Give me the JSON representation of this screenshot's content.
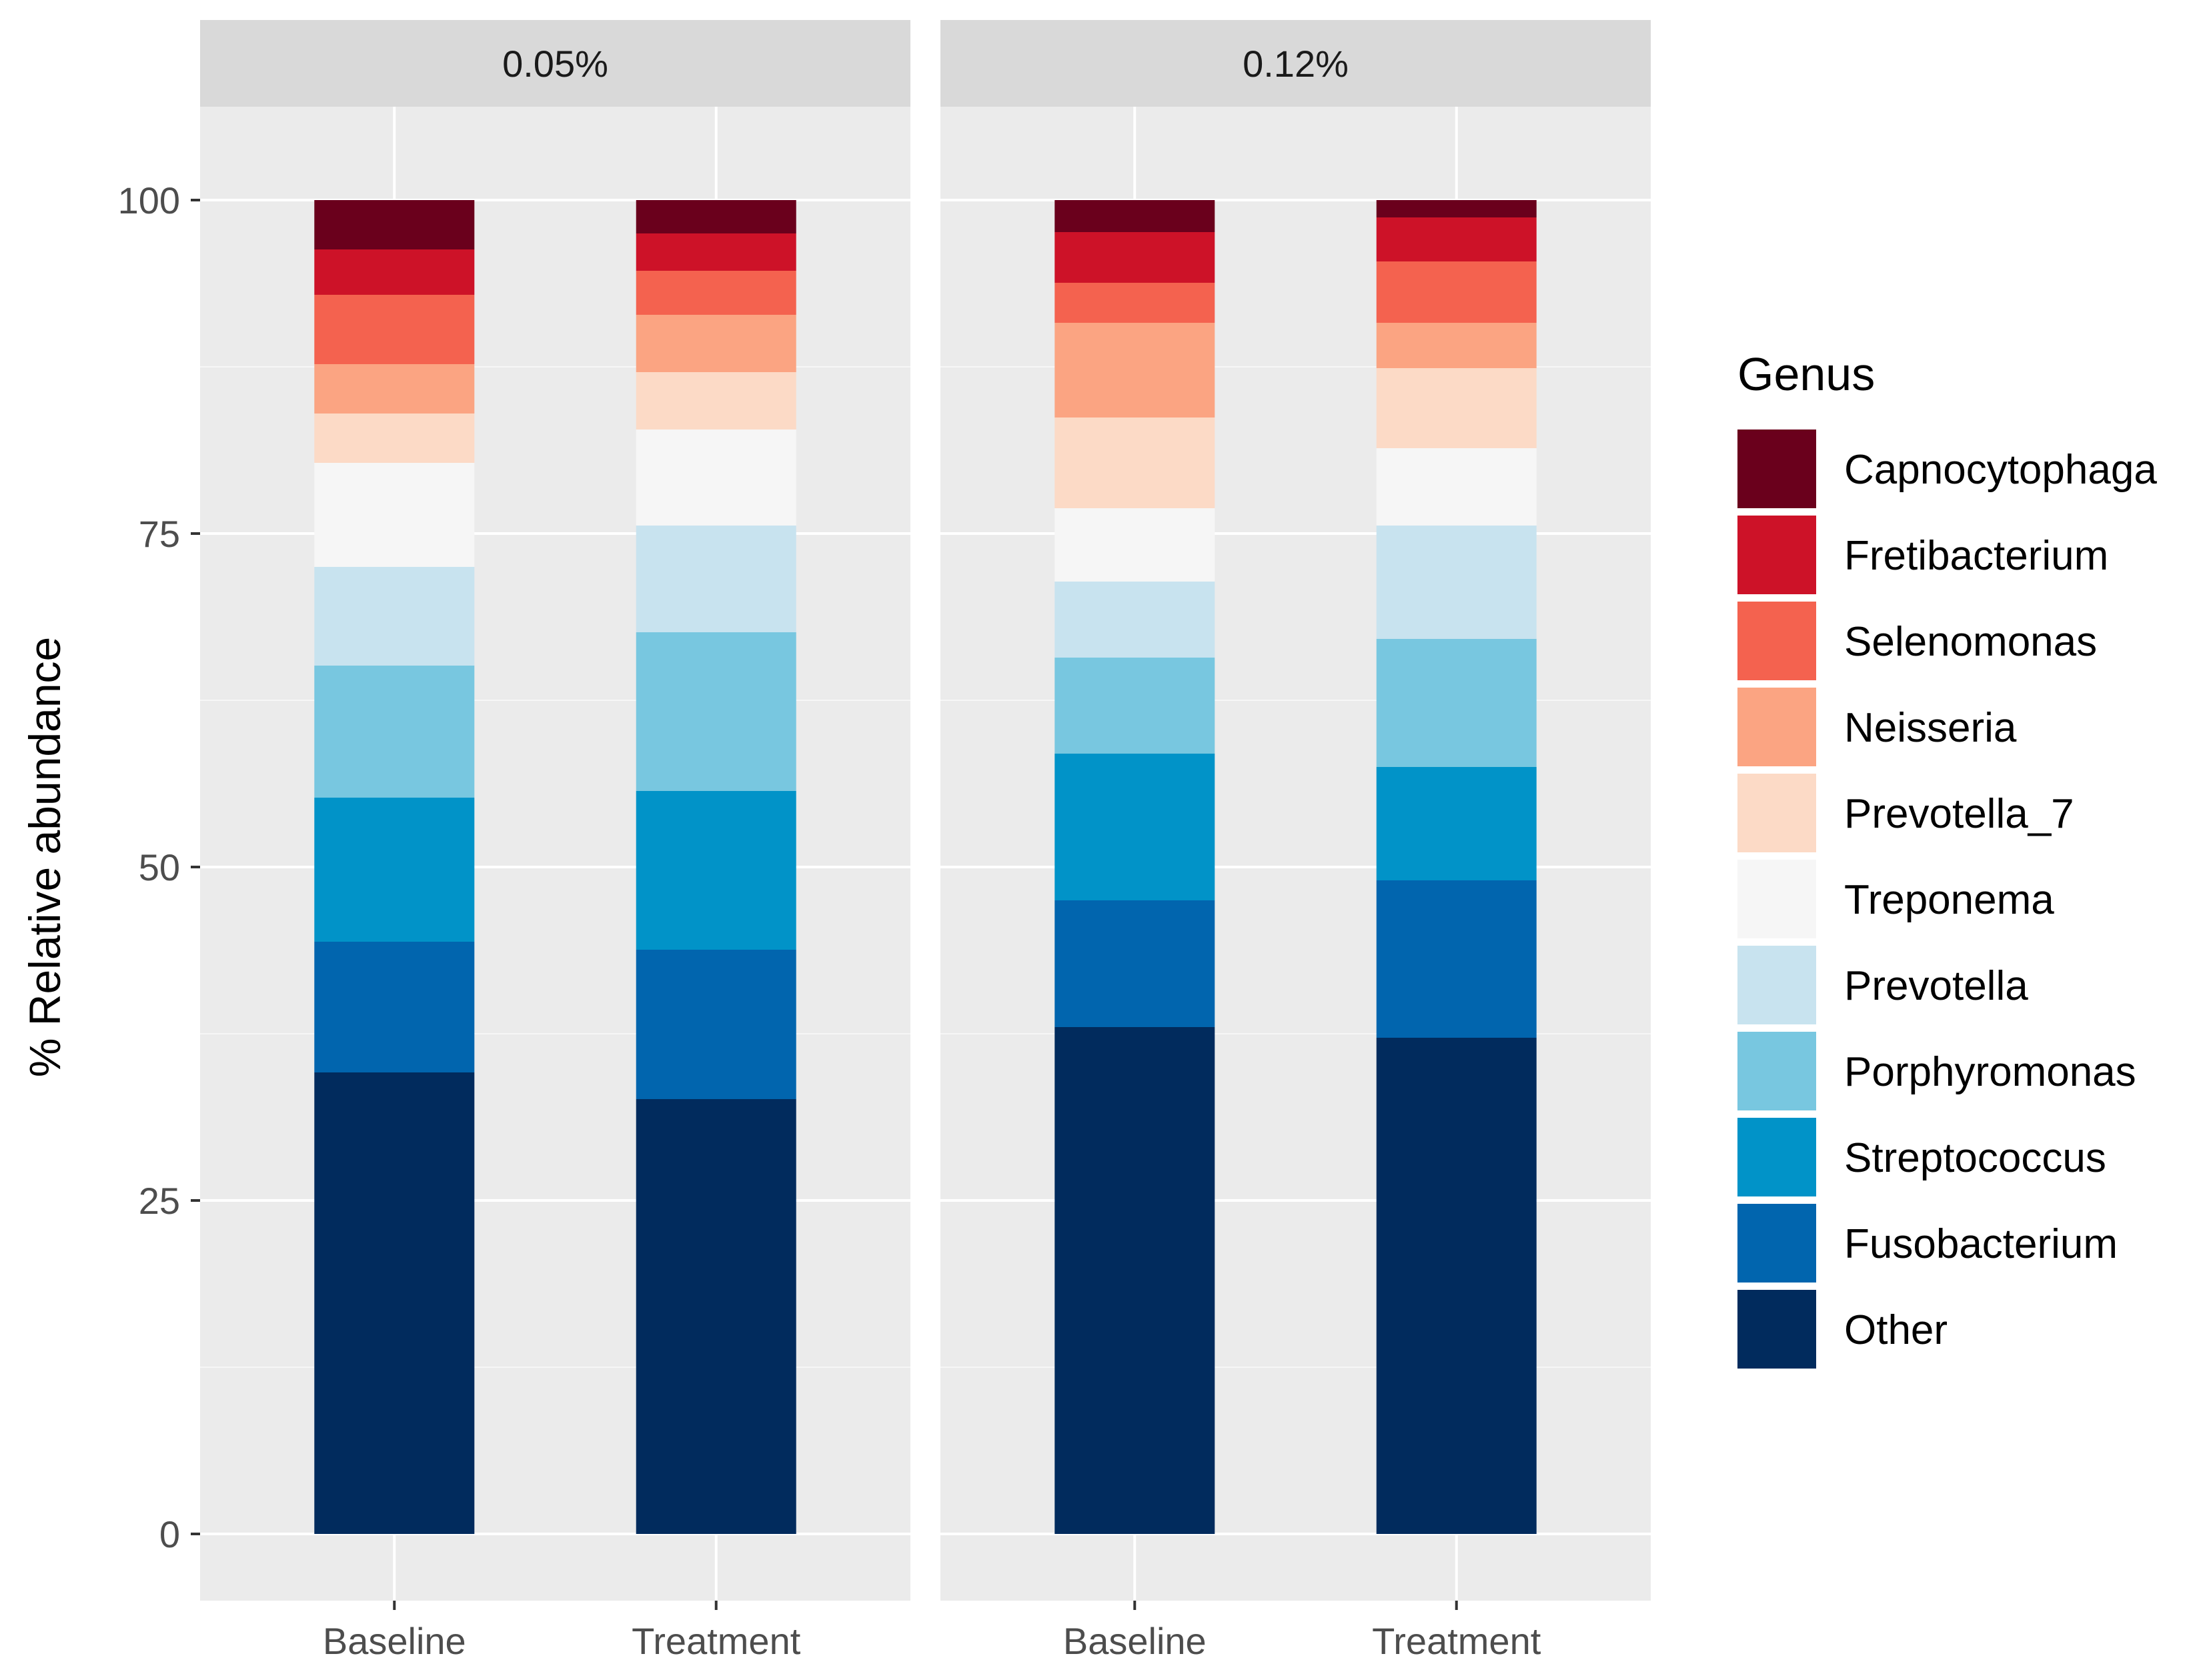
{
  "chart_data": {
    "type": "bar",
    "stacked": true,
    "ylabel": "% Relative abundance",
    "xlabel": "",
    "ylim": [
      -5,
      107
    ],
    "yticks": [
      0,
      25,
      50,
      75,
      100
    ],
    "legend_title": "Genus",
    "legend_position": "right",
    "grid": true,
    "facets": [
      "0.05%",
      "0.12%"
    ],
    "categories": [
      "Baseline",
      "Treatment"
    ],
    "series": [
      {
        "name": "Other",
        "color": "#012B5D",
        "values": [
          [
            34.6,
            32.6
          ],
          [
            38.0,
            37.2
          ]
        ]
      },
      {
        "name": "Fusobacterium",
        "color": "#0165AE",
        "values": [
          [
            9.8,
            11.2
          ],
          [
            9.5,
            11.8
          ]
        ]
      },
      {
        "name": "Streptococcus",
        "color": "#0193C8",
        "values": [
          [
            10.8,
            11.9
          ],
          [
            11.0,
            8.5
          ]
        ]
      },
      {
        "name": "Porphyromonas",
        "color": "#78C7E0",
        "values": [
          [
            9.9,
            11.9
          ],
          [
            7.2,
            9.6
          ]
        ]
      },
      {
        "name": "Prevotella",
        "color": "#C8E3EF",
        "values": [
          [
            7.4,
            8.0
          ],
          [
            5.7,
            8.5
          ]
        ]
      },
      {
        "name": "Treponema",
        "color": "#F6F6F6",
        "values": [
          [
            7.8,
            7.2
          ],
          [
            5.5,
            5.8
          ]
        ]
      },
      {
        "name": "Prevotella_7",
        "color": "#FCDAC6",
        "values": [
          [
            3.7,
            4.3
          ],
          [
            6.8,
            6.0
          ]
        ]
      },
      {
        "name": "Neisseria",
        "color": "#FBA482",
        "values": [
          [
            3.7,
            4.3
          ],
          [
            7.1,
            3.4
          ]
        ]
      },
      {
        "name": "Selenomonas",
        "color": "#F4624F",
        "values": [
          [
            5.2,
            3.3
          ],
          [
            3.0,
            4.6
          ]
        ]
      },
      {
        "name": "Fretibacterium",
        "color": "#CD1228",
        "values": [
          [
            3.4,
            2.8
          ],
          [
            3.8,
            3.3
          ]
        ]
      },
      {
        "name": "Capnocytophaga",
        "color": "#6A001C",
        "values": [
          [
            3.7,
            2.5
          ],
          [
            2.4,
            1.3
          ]
        ]
      }
    ],
    "legend_order": [
      "Capnocytophaga",
      "Fretibacterium",
      "Selenomonas",
      "Neisseria",
      "Prevotella_7",
      "Treponema",
      "Prevotella",
      "Porphyromonas",
      "Streptococcus",
      "Fusobacterium",
      "Other"
    ]
  }
}
